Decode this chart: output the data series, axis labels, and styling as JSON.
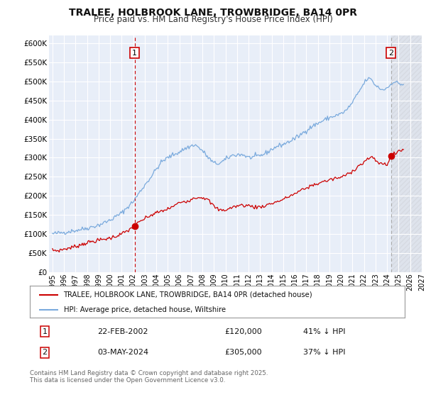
{
  "title": "TRALEE, HOLBROOK LANE, TROWBRIDGE, BA14 0PR",
  "subtitle": "Price paid vs. HM Land Registry's House Price Index (HPI)",
  "title_fontsize": 10,
  "subtitle_fontsize": 8.5,
  "bg_color": "#ffffff",
  "plot_bg_color": "#e8eef8",
  "grid_color": "#ffffff",
  "red_color": "#cc0000",
  "blue_color": "#7aaadd",
  "ylim": [
    0,
    620000
  ],
  "yticks": [
    0,
    50000,
    100000,
    150000,
    200000,
    250000,
    300000,
    350000,
    400000,
    450000,
    500000,
    550000,
    600000
  ],
  "xlim_start": 1994.7,
  "xlim_end": 2027.0,
  "marker1_x": 2002.13,
  "marker1_y": 120000,
  "marker2_x": 2024.34,
  "marker2_y": 305000,
  "vline1_x": 2002.13,
  "vline2_x": 2024.34,
  "legend_label_red": "TRALEE, HOLBROOK LANE, TROWBRIDGE, BA14 0PR (detached house)",
  "legend_label_blue": "HPI: Average price, detached house, Wiltshire",
  "table_row1": [
    "1",
    "22-FEB-2002",
    "£120,000",
    "41% ↓ HPI"
  ],
  "table_row2": [
    "2",
    "03-MAY-2024",
    "£305,000",
    "37% ↓ HPI"
  ],
  "footnote": "Contains HM Land Registry data © Crown copyright and database right 2025.\nThis data is licensed under the Open Government Licence v3.0."
}
